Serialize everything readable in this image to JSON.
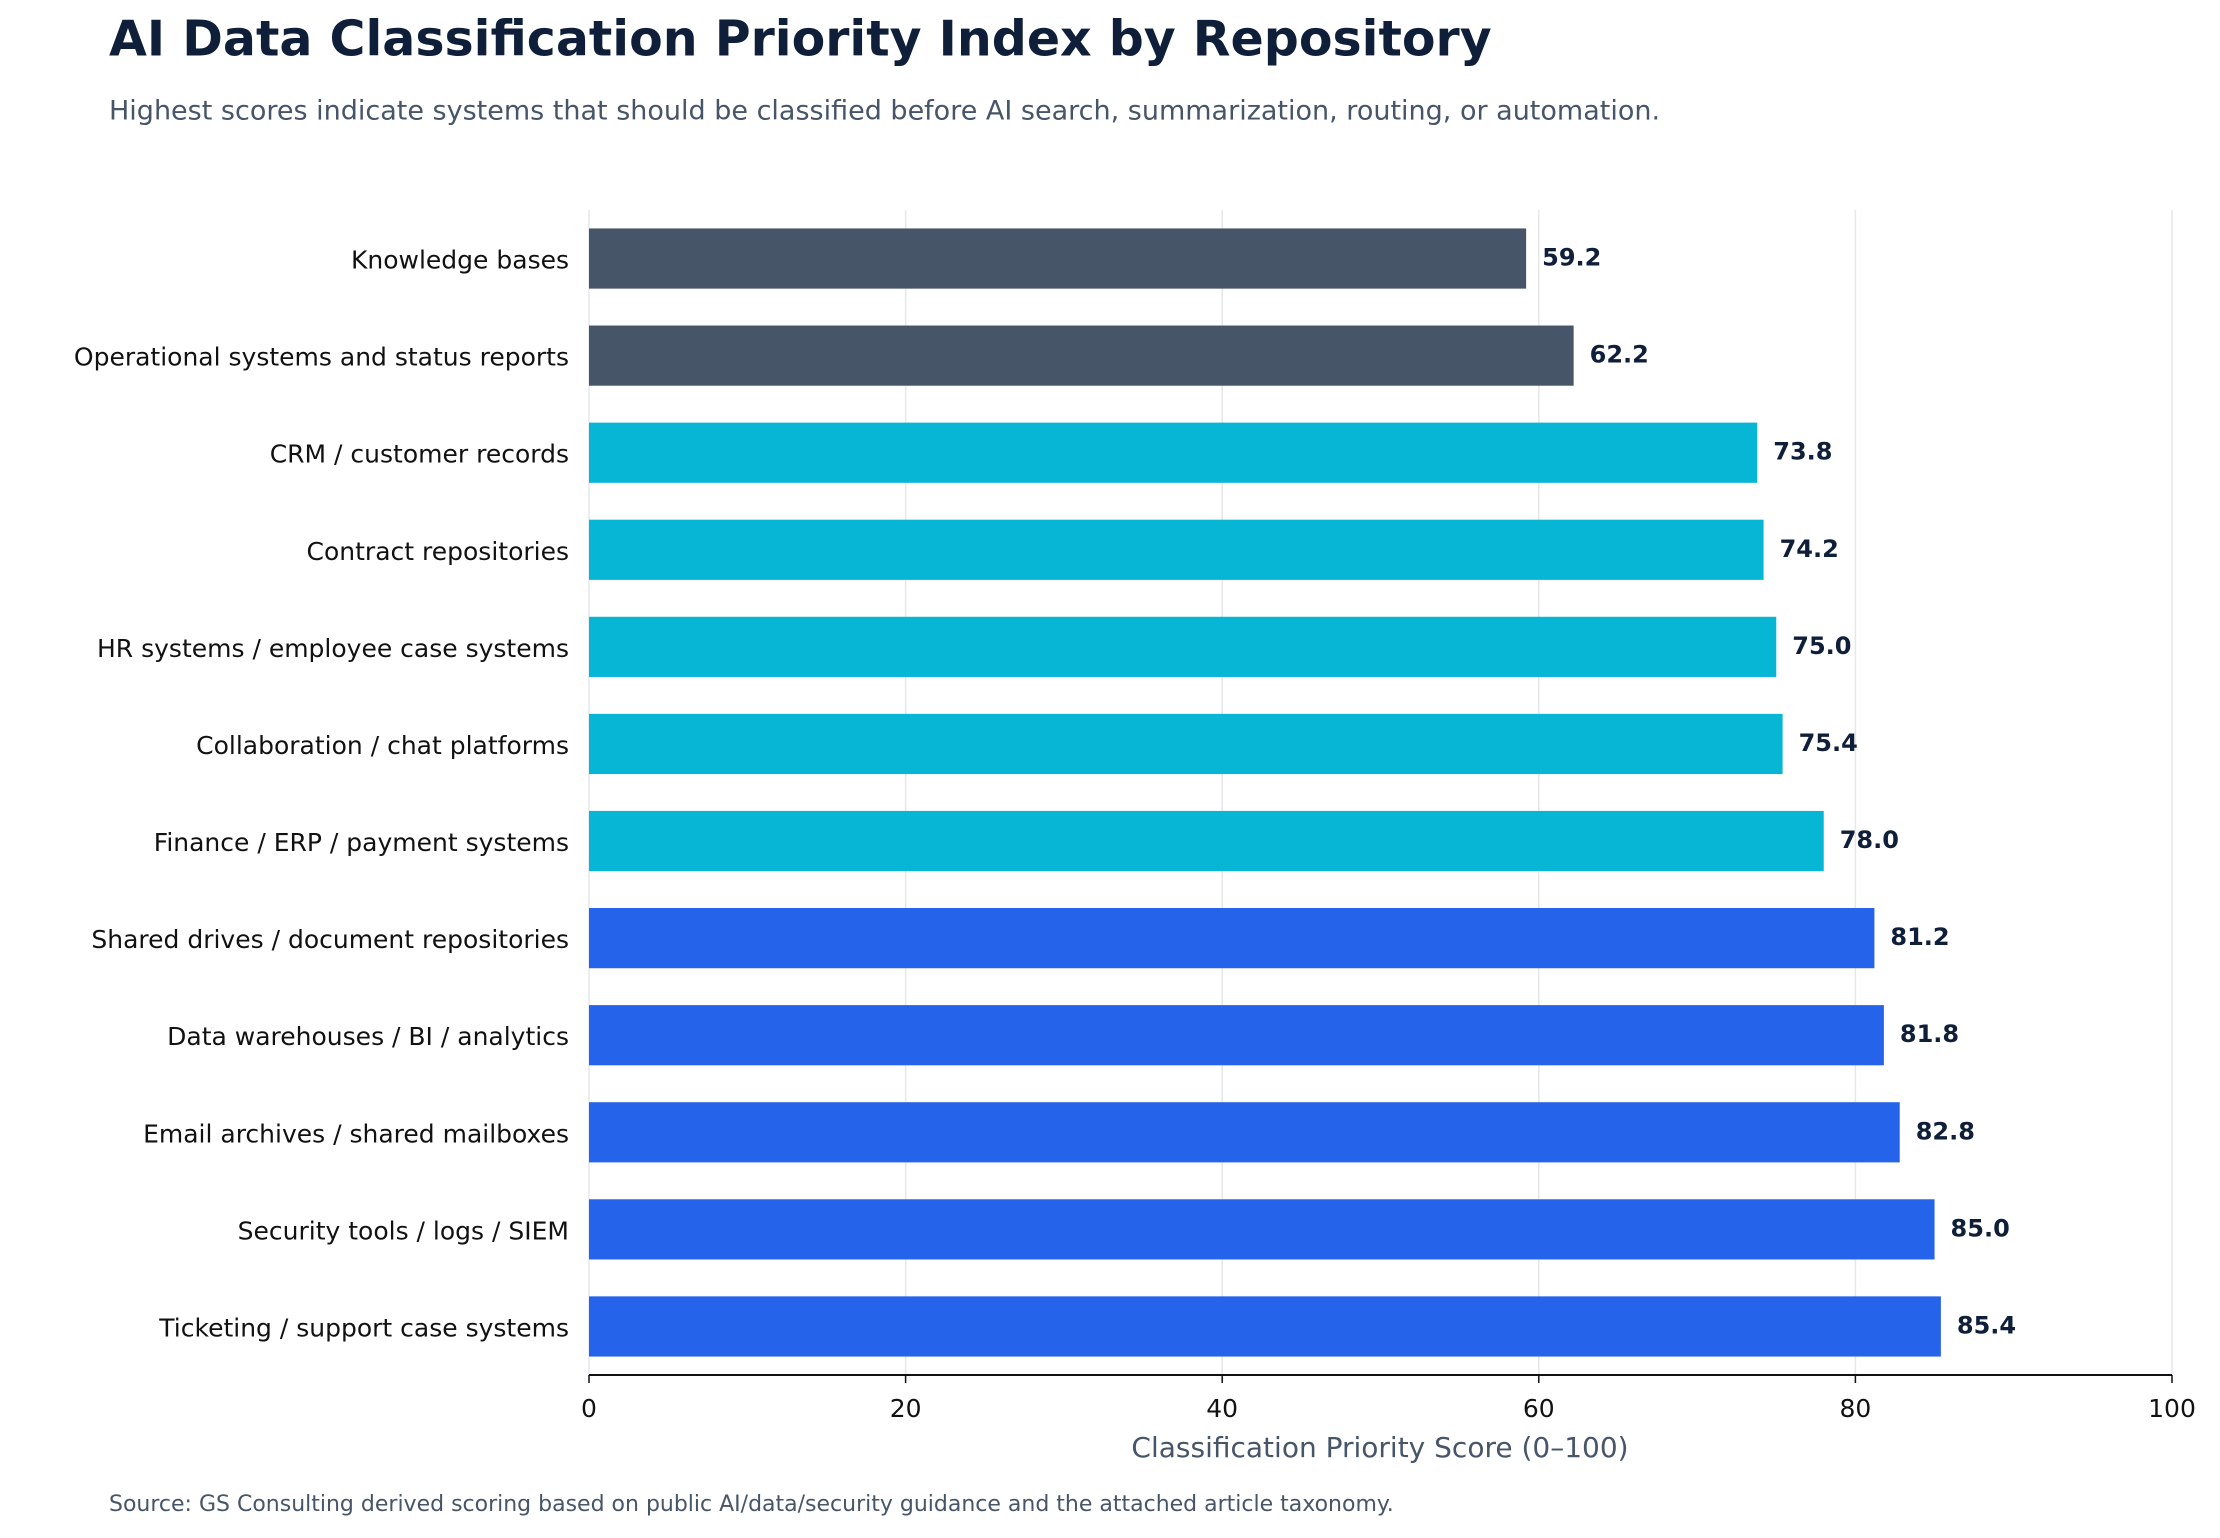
{
  "chart_data": {
    "type": "barh",
    "title": "AI Data Classification Priority Index by Repository",
    "subtitle": "Highest scores indicate systems that should be classified before AI search, summarization, routing, or automation.",
    "x_label": "Classification Priority Score (0–100)",
    "source": "Source: GS Consulting derived scoring based on public AI/data/security guidance and the attached article taxonomy.",
    "categories": [
      "Knowledge bases",
      "Operational systems and status reports",
      "CRM / customer records",
      "Contract repositories",
      "HR systems / employee case systems",
      "Collaboration / chat platforms",
      "Finance / ERP / payment systems",
      "Shared drives / document repositories",
      "Data warehouses / BI / analytics",
      "Email archives / shared mailboxes",
      "Security tools / logs / SIEM",
      "Ticketing / support case systems"
    ],
    "values": [
      59.2,
      62.2,
      73.8,
      74.2,
      75.0,
      75.4,
      78.0,
      81.2,
      81.8,
      82.8,
      85.0,
      85.4
    ],
    "value_labels": [
      "59.2",
      "62.2",
      "73.8",
      "74.2",
      "75.0",
      "75.4",
      "78.0",
      "81.2",
      "81.8",
      "82.8",
      "85.0",
      "85.4"
    ],
    "colors": [
      "#475569",
      "#475569",
      "#06b6d4",
      "#06b6d4",
      "#06b6d4",
      "#06b6d4",
      "#06b6d4",
      "#2563eb",
      "#2563eb",
      "#2563eb",
      "#2563eb",
      "#2563eb"
    ],
    "xlim": [
      0,
      100
    ],
    "xticks": [
      0,
      20,
      40,
      60,
      80,
      100
    ],
    "grid": true
  }
}
